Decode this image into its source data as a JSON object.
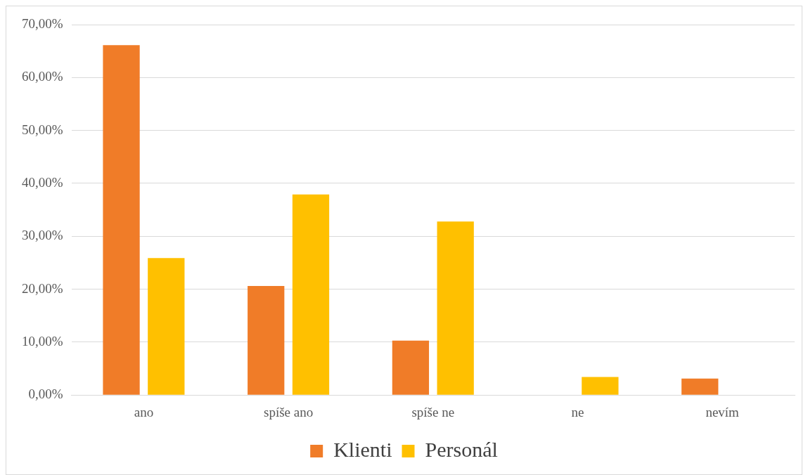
{
  "chart_data": {
    "type": "bar",
    "categories": [
      "ano",
      "spíše ano",
      "spíše ne",
      "ne",
      "nevím"
    ],
    "series": [
      {
        "name": "Klienti",
        "color": "#f07c28",
        "values": [
          66.1,
          20.6,
          10.3,
          0,
          3.1
        ]
      },
      {
        "name": "Personál",
        "color": "#ffc000",
        "values": [
          25.9,
          37.9,
          32.8,
          3.4,
          0
        ]
      }
    ],
    "ylim": [
      0,
      70
    ],
    "yticks": [
      {
        "value": 0,
        "label": "0,00%"
      },
      {
        "value": 10,
        "label": "10,00%"
      },
      {
        "value": 20,
        "label": "20,00%"
      },
      {
        "value": 30,
        "label": "30,00%"
      },
      {
        "value": 40,
        "label": "40,00%"
      },
      {
        "value": 50,
        "label": "50,00%"
      },
      {
        "value": 60,
        "label": "60,00%"
      },
      {
        "value": 70,
        "label": "70,00%"
      }
    ],
    "grid": "y",
    "legend": "bottom"
  }
}
